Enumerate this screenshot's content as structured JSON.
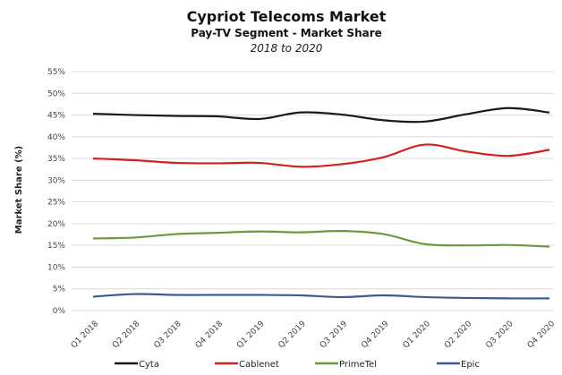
{
  "chart_data": {
    "type": "line",
    "title": "Cypriot Telecoms Market",
    "subtitle": "Pay-TV Segment - Market Share",
    "period": "2018 to 2020",
    "ylabel": "Market Share (%)",
    "xlabel": "",
    "ylim": [
      0,
      55
    ],
    "yticks": [
      "0%",
      "5%",
      "10%",
      "15%",
      "20%",
      "25%",
      "30%",
      "35%",
      "40%",
      "45%",
      "50%",
      "55%"
    ],
    "grid": true,
    "legend_position": "bottom",
    "categories": [
      "Q1 2018",
      "Q2 2018",
      "Q3 2018",
      "Q4 2018",
      "Q1 2019",
      "Q2 2019",
      "Q3 2019",
      "Q4 2019",
      "Q1 2020",
      "Q2 2020",
      "Q3 2020",
      "Q4 2020"
    ],
    "series": [
      {
        "name": "Cyta",
        "color": "#1a1a1a",
        "values": [
          45.3,
          45.0,
          44.8,
          44.7,
          44.1,
          45.6,
          45.1,
          43.8,
          43.5,
          45.2,
          46.6,
          45.6
        ]
      },
      {
        "name": "Cablenet",
        "color": "#d42020",
        "values": [
          35.0,
          34.6,
          34.0,
          33.9,
          34.0,
          33.1,
          33.7,
          35.3,
          38.2,
          36.6,
          35.6,
          37.0
        ]
      },
      {
        "name": "PrimeTel",
        "color": "#6a9a3c",
        "values": [
          16.6,
          16.8,
          17.6,
          17.9,
          18.2,
          18.0,
          18.3,
          17.6,
          15.3,
          15.0,
          15.1,
          14.7
        ]
      },
      {
        "name": "Epic",
        "color": "#3c5a9a",
        "values": [
          3.2,
          3.8,
          3.6,
          3.6,
          3.6,
          3.5,
          3.1,
          3.5,
          3.1,
          2.9,
          2.8,
          2.8
        ]
      }
    ]
  }
}
